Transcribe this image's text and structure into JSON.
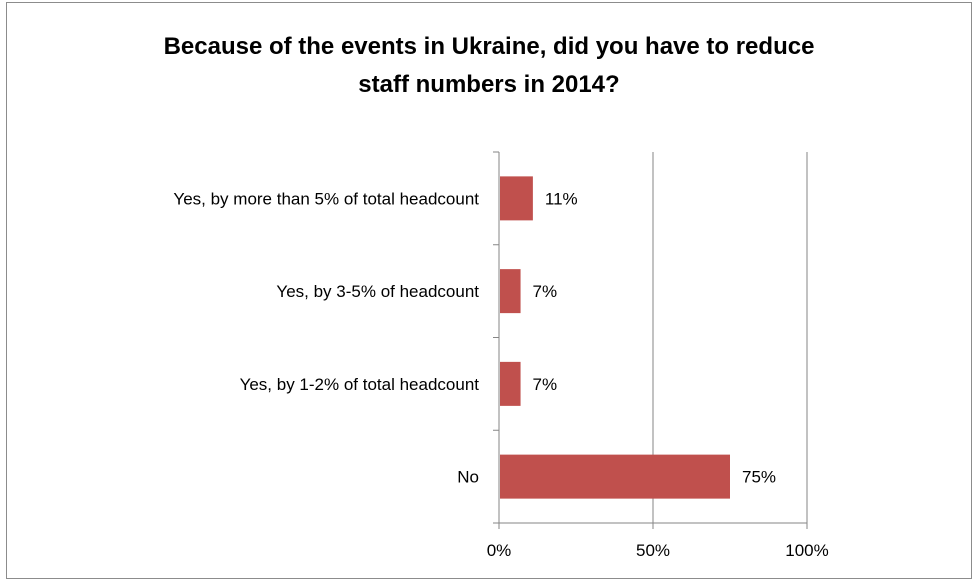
{
  "chart_data": {
    "type": "bar",
    "orientation": "horizontal",
    "title": "Because of the events in Ukraine, did you have to reduce\nstaff numbers in 2014?",
    "categories": [
      "Yes, by more than 5% of total headcount",
      "Yes, by 3-5% of headcount",
      "Yes, by 1-2% of total headcount",
      "No"
    ],
    "values": [
      11,
      7,
      7,
      75
    ],
    "data_labels": [
      "11%",
      "7%",
      "7%",
      "75%"
    ],
    "xlim": [
      0,
      100
    ],
    "x_ticks": [
      0,
      50,
      100
    ],
    "x_tick_labels": [
      "0%",
      "50%",
      "100%"
    ],
    "xlabel": "",
    "ylabel": "",
    "grid": true,
    "legend": "none",
    "bar_color": "#c0504d",
    "grid_color": "#868686"
  }
}
